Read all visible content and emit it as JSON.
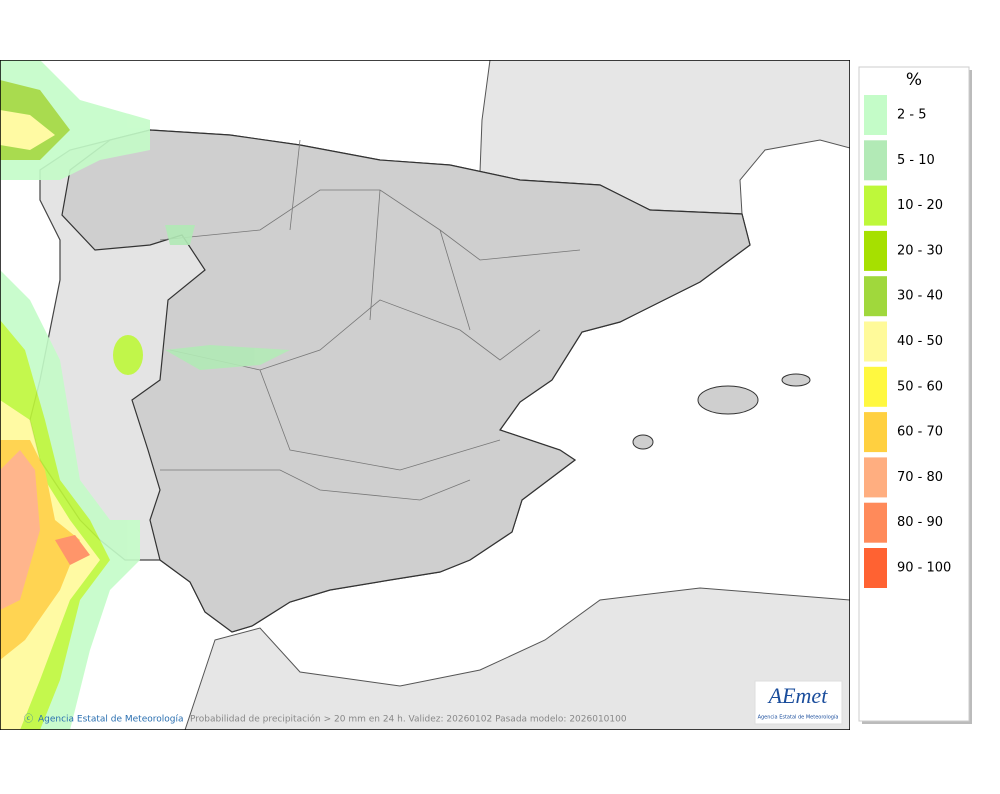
{
  "map": {
    "credit": "Agencia Estatal de Meteorología",
    "caption": "Probabilidad de precipitación > 20 mm en 24 h. Validez: 20260102 Pasada modelo: 2026010100"
  },
  "logo": {
    "text": "AEmet",
    "subtitle": "Agencia Estatal de Meteorología"
  },
  "legend": {
    "title": "%",
    "items": [
      {
        "label": "2 - 5",
        "color": "#c4fcc8"
      },
      {
        "label": "5 - 10",
        "color": "#b2eab6"
      },
      {
        "label": "10 - 20",
        "color": "#bef83a"
      },
      {
        "label": "20 - 30",
        "color": "#a6e000"
      },
      {
        "label": "30 - 40",
        "color": "#a0d83c"
      },
      {
        "label": "40 - 50",
        "color": "#fffa9a"
      },
      {
        "label": "50 - 60",
        "color": "#fff840"
      },
      {
        "label": "60 - 70",
        "color": "#ffd040"
      },
      {
        "label": "70 - 80",
        "color": "#ffae80"
      },
      {
        "label": "80 - 90",
        "color": "#ff8a5a"
      },
      {
        "label": "90 - 100",
        "color": "#ff6232"
      }
    ]
  }
}
